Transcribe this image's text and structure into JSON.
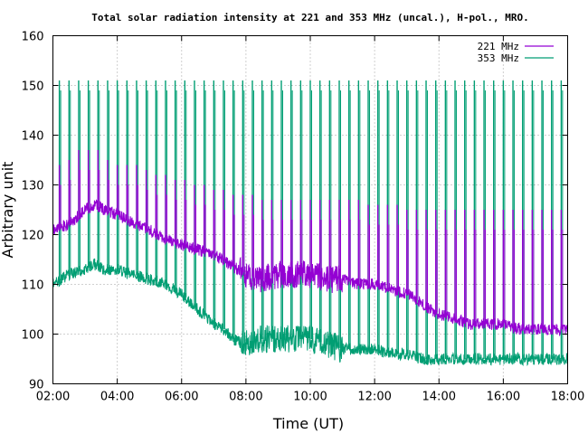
{
  "chart_data": {
    "type": "line",
    "title": "Total solar radiation intensity at 221 and 353 MHz (uncal.), H-pol., MRO.",
    "xlabel": "Time (UT)",
    "ylabel": "Arbitrary unit",
    "xlim_hours": [
      2,
      18
    ],
    "ylim": [
      90,
      160
    ],
    "yticks": [
      90,
      100,
      110,
      120,
      130,
      140,
      150,
      160
    ],
    "xticks": [
      "02:00",
      "04:00",
      "06:00",
      "08:00",
      "10:00",
      "12:00",
      "14:00",
      "16:00",
      "18:00"
    ],
    "grid": true,
    "legend_position": "top-right",
    "series": [
      {
        "name": "221 MHz",
        "color": "#9400d3",
        "baseline": [
          [
            2.0,
            121
          ],
          [
            2.5,
            122
          ],
          [
            3.0,
            125
          ],
          [
            3.3,
            126
          ],
          [
            3.6,
            125
          ],
          [
            4.0,
            124
          ],
          [
            4.3,
            123
          ],
          [
            4.6,
            122
          ],
          [
            5.0,
            121
          ],
          [
            5.5,
            119
          ],
          [
            6.0,
            118
          ],
          [
            6.5,
            117
          ],
          [
            7.0,
            116
          ],
          [
            7.5,
            114
          ],
          [
            8.0,
            112
          ],
          [
            8.5,
            111
          ],
          [
            9.0,
            112
          ],
          [
            9.5,
            112
          ],
          [
            10.0,
            112
          ],
          [
            10.5,
            111
          ],
          [
            11.0,
            111
          ],
          [
            11.5,
            110
          ],
          [
            12.0,
            110
          ],
          [
            12.5,
            109
          ],
          [
            13.0,
            108
          ],
          [
            13.5,
            106
          ],
          [
            14.0,
            104
          ],
          [
            14.5,
            103
          ],
          [
            15.0,
            102
          ],
          [
            15.5,
            102
          ],
          [
            16.0,
            102
          ],
          [
            16.5,
            101
          ],
          [
            17.0,
            101
          ],
          [
            17.5,
            101
          ],
          [
            18.0,
            101
          ]
        ],
        "peaks": [
          [
            2.2,
            134
          ],
          [
            2.5,
            135
          ],
          [
            2.8,
            137
          ],
          [
            3.1,
            137
          ],
          [
            3.4,
            137
          ],
          [
            3.7,
            135
          ],
          [
            4.0,
            134
          ],
          [
            4.3,
            134
          ],
          [
            4.6,
            134
          ],
          [
            4.9,
            133
          ],
          [
            5.2,
            132
          ],
          [
            5.5,
            132
          ],
          [
            5.8,
            131
          ],
          [
            6.1,
            131
          ],
          [
            6.4,
            130
          ],
          [
            6.7,
            130
          ],
          [
            7.0,
            129
          ],
          [
            7.3,
            129
          ],
          [
            7.6,
            128
          ],
          [
            7.9,
            128
          ],
          [
            8.2,
            128
          ],
          [
            8.5,
            127
          ],
          [
            8.8,
            127
          ],
          [
            9.1,
            127
          ],
          [
            9.4,
            127
          ],
          [
            9.7,
            127
          ],
          [
            10.0,
            127
          ],
          [
            10.3,
            127
          ],
          [
            10.6,
            127
          ],
          [
            10.9,
            127
          ],
          [
            11.2,
            127
          ],
          [
            11.5,
            127
          ],
          [
            11.8,
            126
          ],
          [
            12.1,
            126
          ],
          [
            12.4,
            126
          ],
          [
            12.7,
            126
          ],
          [
            13.0,
            125
          ],
          [
            13.3,
            125
          ],
          [
            13.6,
            125
          ],
          [
            13.9,
            125
          ],
          [
            14.2,
            125
          ],
          [
            14.5,
            125
          ],
          [
            14.8,
            125
          ],
          [
            15.1,
            125
          ],
          [
            15.4,
            125
          ],
          [
            15.7,
            125
          ],
          [
            16.0,
            125
          ],
          [
            16.3,
            125
          ],
          [
            16.6,
            125
          ],
          [
            16.9,
            125
          ],
          [
            17.2,
            125
          ],
          [
            17.5,
            125
          ],
          [
            17.8,
            125
          ]
        ]
      },
      {
        "name": "353 MHz",
        "color": "#009e73",
        "baseline": [
          [
            2.0,
            110
          ],
          [
            2.5,
            112
          ],
          [
            3.0,
            113
          ],
          [
            3.3,
            114
          ],
          [
            3.6,
            113
          ],
          [
            4.0,
            113
          ],
          [
            4.5,
            112
          ],
          [
            5.0,
            111
          ],
          [
            5.5,
            110
          ],
          [
            6.0,
            108
          ],
          [
            6.5,
            105
          ],
          [
            7.0,
            102
          ],
          [
            7.3,
            101
          ],
          [
            7.6,
            99
          ],
          [
            8.0,
            98
          ],
          [
            8.5,
            99
          ],
          [
            9.0,
            99
          ],
          [
            9.5,
            99
          ],
          [
            10.0,
            99
          ],
          [
            10.5,
            98
          ],
          [
            11.0,
            97
          ],
          [
            11.5,
            97
          ],
          [
            12.0,
            97
          ],
          [
            12.5,
            96
          ],
          [
            13.0,
            96
          ],
          [
            13.5,
            95
          ],
          [
            14.0,
            95
          ],
          [
            14.5,
            95
          ],
          [
            15.0,
            95
          ],
          [
            15.5,
            95
          ],
          [
            16.0,
            95
          ],
          [
            16.5,
            95
          ],
          [
            17.0,
            95
          ],
          [
            17.5,
            95
          ],
          [
            18.0,
            95
          ]
        ],
        "peaks": [
          [
            2.2,
            151
          ],
          [
            2.5,
            151
          ],
          [
            2.8,
            151
          ],
          [
            3.1,
            151
          ],
          [
            3.4,
            151
          ],
          [
            3.7,
            151
          ],
          [
            4.0,
            151
          ],
          [
            4.3,
            151
          ],
          [
            4.6,
            151
          ],
          [
            4.9,
            151
          ],
          [
            5.2,
            151
          ],
          [
            5.5,
            151
          ],
          [
            5.8,
            151
          ],
          [
            6.1,
            151
          ],
          [
            6.4,
            151
          ],
          [
            6.7,
            151
          ],
          [
            7.0,
            151
          ],
          [
            7.3,
            151
          ],
          [
            7.6,
            151
          ],
          [
            7.9,
            151
          ],
          [
            8.2,
            151
          ],
          [
            8.5,
            151
          ],
          [
            8.8,
            151
          ],
          [
            9.1,
            151
          ],
          [
            9.4,
            151
          ],
          [
            9.7,
            151
          ],
          [
            10.0,
            151
          ],
          [
            10.3,
            151
          ],
          [
            10.6,
            151
          ],
          [
            10.9,
            151
          ],
          [
            11.2,
            151
          ],
          [
            11.5,
            151
          ],
          [
            11.8,
            151
          ],
          [
            12.1,
            151
          ],
          [
            12.4,
            151
          ],
          [
            12.7,
            151
          ],
          [
            13.0,
            151
          ],
          [
            13.3,
            151
          ],
          [
            13.6,
            151
          ],
          [
            13.9,
            151
          ],
          [
            14.2,
            151
          ],
          [
            14.5,
            151
          ],
          [
            14.8,
            151
          ],
          [
            15.1,
            151
          ],
          [
            15.4,
            151
          ],
          [
            15.7,
            151
          ],
          [
            16.0,
            151
          ],
          [
            16.3,
            151
          ],
          [
            16.6,
            151
          ],
          [
            16.9,
            151
          ],
          [
            17.2,
            151
          ],
          [
            17.5,
            151
          ],
          [
            17.8,
            151
          ]
        ]
      }
    ]
  }
}
